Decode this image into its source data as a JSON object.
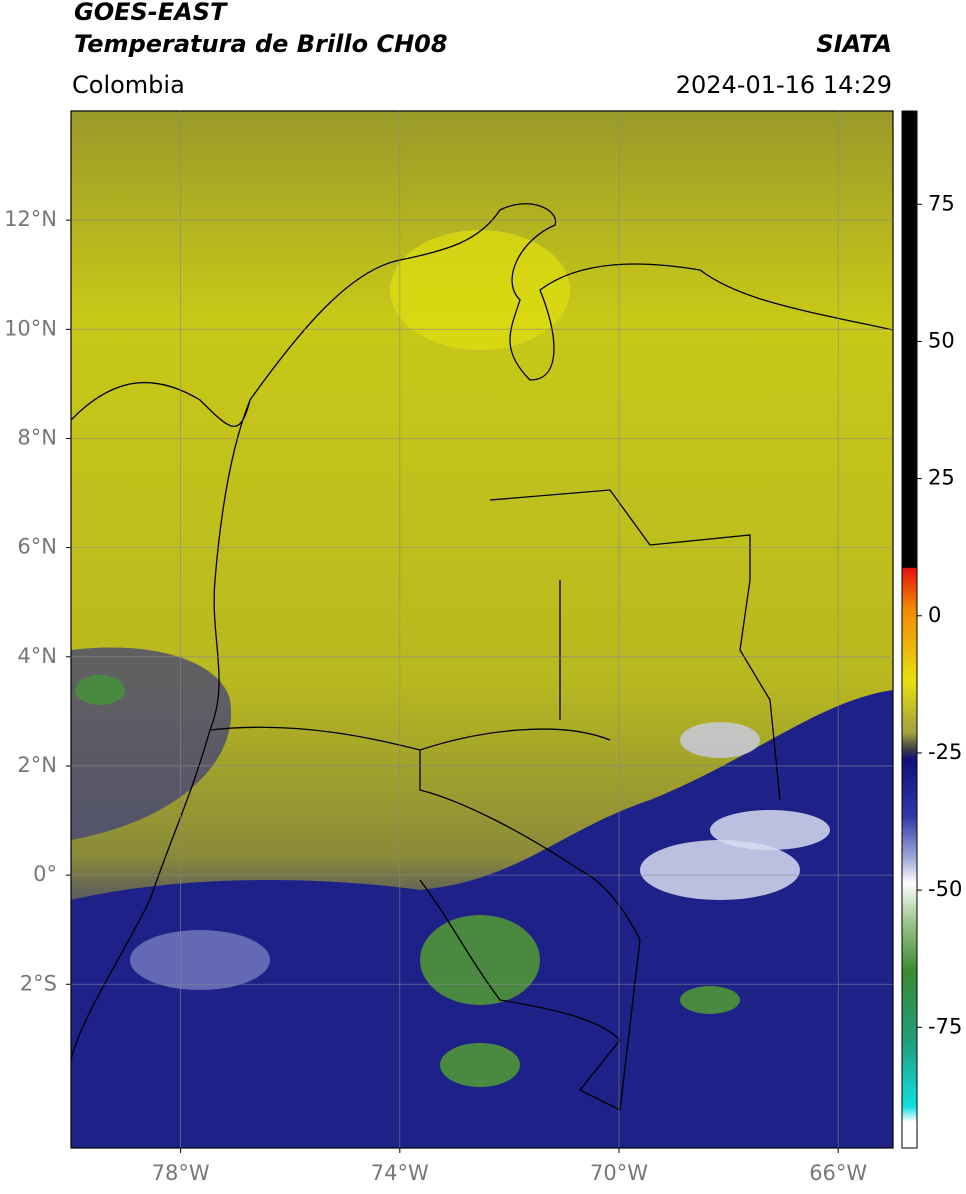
{
  "header": {
    "title": "GOES-EAST",
    "subtitle": "Temperatura de Brillo CH08",
    "region": "Colombia",
    "source": "SIATA",
    "timestamp": "2024-01-16 14:29"
  },
  "map": {
    "xlim": [
      -80,
      -65
    ],
    "ylim": [
      -5,
      14
    ],
    "xticks": [
      {
        "value": -78,
        "label": "78°W"
      },
      {
        "value": -74,
        "label": "74°W"
      },
      {
        "value": -70,
        "label": "70°W"
      },
      {
        "value": -66,
        "label": "66°W"
      }
    ],
    "yticks": [
      {
        "value": 12,
        "label": "12°N"
      },
      {
        "value": 10,
        "label": "10°N"
      },
      {
        "value": 8,
        "label": "8°N"
      },
      {
        "value": 6,
        "label": "6°N"
      },
      {
        "value": 4,
        "label": "4°N"
      },
      {
        "value": 2,
        "label": "2°N"
      },
      {
        "value": 0,
        "label": "0°"
      },
      {
        "value": -2,
        "label": "2°S"
      }
    ],
    "grid": true
  },
  "colorbar": {
    "lim": [
      -97,
      92
    ],
    "ticks": [
      75,
      50,
      25,
      0,
      -25,
      -50,
      -75
    ]
  }
}
